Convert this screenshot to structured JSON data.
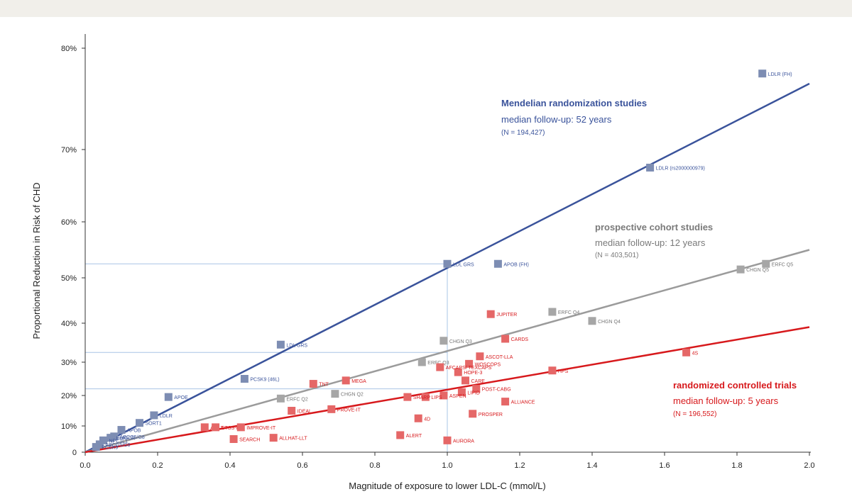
{
  "chart_data": {
    "type": "scatter",
    "xlabel": "Magnitude of exposure to lower LDL-C (mmol/L)",
    "ylabel": "Proportional Reduction in Risk of CHD",
    "xlim": [
      0,
      2.0
    ],
    "xticks": [
      "0.0",
      "0.2",
      "0.4",
      "0.6",
      "0.8",
      "1.0",
      "1.2",
      "1.4",
      "1.6",
      "1.8",
      "2.0"
    ],
    "yticks": [
      {
        "value": 0,
        "label": "0"
      },
      {
        "value": 10,
        "label": "10%"
      },
      {
        "value": 20,
        "label": "20%"
      },
      {
        "value": 30,
        "label": "30%"
      },
      {
        "value": 40,
        "label": "40%"
      },
      {
        "value": 50,
        "label": "50%"
      },
      {
        "value": 60,
        "label": "60%"
      },
      {
        "value": 70,
        "label": "70%"
      },
      {
        "value": 80,
        "label": "80%"
      }
    ],
    "colors": {
      "mendelian": "#3a539b",
      "mendelian_marker": "#7d8db3",
      "cohort": "#9b9b9b",
      "cohort_marker": "#a6a6a6",
      "rct": "#d7191c",
      "rct_marker": "#e56767",
      "guide": "#a9c4e6"
    },
    "series": [
      {
        "name": "Mendelian randomization studies",
        "key": "mendelian",
        "subtitle": "median follow-up: 52 years",
        "n": "(N = 194,427)",
        "fit_line": {
          "x": [
            0,
            2.0
          ],
          "y": [
            0,
            76.5
          ]
        },
        "points": [
          {
            "label": "LDLR (FH)",
            "x": 1.87,
            "y": 77.5
          },
          {
            "label": "LDLR (rs2000000979)",
            "x": 1.56,
            "y": 67.5
          },
          {
            "label": "LDL GRS",
            "x": 1.0,
            "y": 52.5
          },
          {
            "label": "APOB (FH)",
            "x": 1.14,
            "y": 52.5
          },
          {
            "label": "LDL GRS",
            "x": 0.54,
            "y": 34.5
          },
          {
            "label": "PCSK9 (46L)",
            "x": 0.44,
            "y": 25.0
          },
          {
            "label": "APOE",
            "x": 0.23,
            "y": 19.5
          },
          {
            "label": "LDLR",
            "x": 0.19,
            "y": 13.5
          },
          {
            "label": "SORT1",
            "x": 0.15,
            "y": 11.0
          },
          {
            "label": "APOB",
            "x": 0.1,
            "y": 8.5
          },
          {
            "label": "ABCG5/G8",
            "x": 0.08,
            "y": 6.0
          },
          {
            "label": "HMGCR",
            "x": 0.07,
            "y": 5.5
          },
          {
            "label": "NPC1L1",
            "x": 0.05,
            "y": 4.5
          },
          {
            "label": "ABCG5/G8",
            "x": 0.04,
            "y": 3.0
          },
          {
            "label": "PCSK9",
            "x": 0.03,
            "y": 2.0
          }
        ]
      },
      {
        "name": "prospective cohort studies",
        "key": "cohort",
        "subtitle": "median follow-up: 12 years",
        "n": "(N = 403,501)",
        "fit_line": {
          "x": [
            0,
            2.0
          ],
          "y": [
            0,
            55
          ]
        },
        "points": [
          {
            "label": "ERFC Q5",
            "x": 1.88,
            "y": 52.5
          },
          {
            "label": "CHGN Q5",
            "x": 1.81,
            "y": 51.5
          },
          {
            "label": "ERFC Q4",
            "x": 1.29,
            "y": 42.5
          },
          {
            "label": "CHGN Q4",
            "x": 1.4,
            "y": 40.5
          },
          {
            "label": "CHGN Q3",
            "x": 0.99,
            "y": 35.5
          },
          {
            "label": "ERFC Q3",
            "x": 0.93,
            "y": 30.0
          },
          {
            "label": "CHGN Q2",
            "x": 0.69,
            "y": 20.5
          },
          {
            "label": "ERFC Q2",
            "x": 0.54,
            "y": 19.0
          }
        ]
      },
      {
        "name": "randomized controlled trials",
        "key": "rct",
        "subtitle": "median follow-up: 5 years",
        "n": "(N = 196,552)",
        "fit_line": {
          "x": [
            0,
            2.0
          ],
          "y": [
            0,
            39
          ]
        },
        "points": [
          {
            "label": "4S",
            "x": 1.66,
            "y": 32.5
          },
          {
            "label": "JUPITER",
            "x": 1.12,
            "y": 42.0
          },
          {
            "label": "CARDS",
            "x": 1.16,
            "y": 36.0
          },
          {
            "label": "ASCOT-LLA",
            "x": 1.09,
            "y": 31.5
          },
          {
            "label": "WOSCOPS",
            "x": 1.06,
            "y": 29.5
          },
          {
            "label": "HOPE-3",
            "x": 1.03,
            "y": 27.0
          },
          {
            "label": "HPS",
            "x": 1.29,
            "y": 27.5
          },
          {
            "label": "AFCAPS/ TEXCAPS",
            "x": 0.98,
            "y": 28.5
          },
          {
            "label": "CARE",
            "x": 1.05,
            "y": 24.5
          },
          {
            "label": "POST-CABG",
            "x": 1.08,
            "y": 22.0
          },
          {
            "label": "LIPID",
            "x": 1.04,
            "y": 21.0
          },
          {
            "label": "ALLIANCE",
            "x": 1.16,
            "y": 18.0
          },
          {
            "label": "PROSPER",
            "x": 1.07,
            "y": 14.0
          },
          {
            "label": "ASPEN",
            "x": 0.99,
            "y": 20.0
          },
          {
            "label": "LIPS",
            "x": 0.94,
            "y": 19.5
          },
          {
            "label": "SHARP",
            "x": 0.89,
            "y": 19.5
          },
          {
            "label": "4D",
            "x": 0.92,
            "y": 12.5
          },
          {
            "label": "ALERT",
            "x": 0.87,
            "y": 6.5
          },
          {
            "label": "AURORA",
            "x": 1.0,
            "y": 4.5
          },
          {
            "label": "TNT",
            "x": 0.63,
            "y": 23.5
          },
          {
            "label": "MEGA",
            "x": 0.72,
            "y": 24.5
          },
          {
            "label": "PROVE-IT",
            "x": 0.68,
            "y": 15.5
          },
          {
            "label": "IDEAL",
            "x": 0.57,
            "y": 15.0
          },
          {
            "label": "A to Z",
            "x": 0.33,
            "y": 9.5
          },
          {
            "label": "CTSS-P",
            "x": 0.36,
            "y": 9.5
          },
          {
            "label": "IMPROVE-IT",
            "x": 0.43,
            "y": 9.5
          },
          {
            "label": "SEARCH",
            "x": 0.41,
            "y": 5.0
          },
          {
            "label": "ALLHAT-LLT",
            "x": 0.52,
            "y": 5.5
          }
        ]
      }
    ],
    "guides": [
      {
        "x": 1.0,
        "y": 52.5
      },
      {
        "x": 1.0,
        "y": 32.5
      },
      {
        "x": 1.0,
        "y": 22.0
      }
    ]
  }
}
